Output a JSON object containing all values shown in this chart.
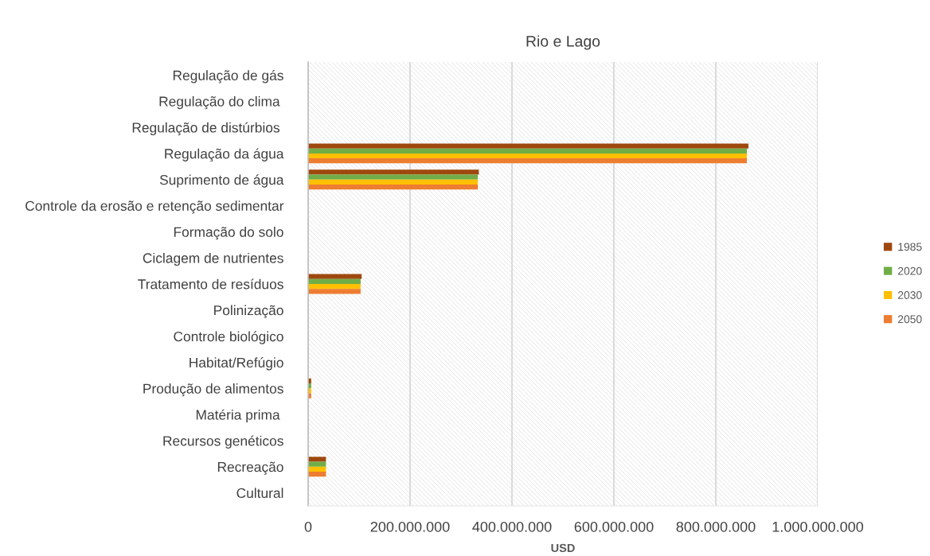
{
  "chart_data": {
    "type": "bar",
    "orientation": "horizontal",
    "title": "Rio e Lago",
    "xlabel": "USD",
    "categories": [
      "Regulação de gás",
      "Regulação do clima ",
      "Regulação de distúrbios ",
      "Regulação da água",
      "Suprimento de água",
      "Controle da erosão e retenção sedimentar",
      "Formação do solo",
      "Ciclagem de nutrientes",
      "Tratamento de resíduos",
      "Polinização",
      "Controle biológico",
      "Habitat/Refúgio",
      "Produção de alimentos",
      "Matéria prima ",
      "Recursos genéticos",
      "Recreação",
      "Cultural"
    ],
    "series": [
      {
        "name": "1985",
        "color": "#9e480e",
        "values": [
          null,
          null,
          null,
          864000000,
          335000000,
          null,
          null,
          null,
          105000000,
          null,
          null,
          null,
          6000000,
          null,
          null,
          35000000,
          null
        ]
      },
      {
        "name": "2020",
        "color": "#70ad47",
        "values": [
          null,
          null,
          null,
          861000000,
          333000000,
          null,
          null,
          null,
          103000000,
          null,
          null,
          null,
          6000000,
          null,
          null,
          35000000,
          null
        ]
      },
      {
        "name": "2030",
        "color": "#ffc000",
        "values": [
          null,
          null,
          null,
          861000000,
          333000000,
          null,
          null,
          null,
          103000000,
          null,
          null,
          null,
          6000000,
          null,
          null,
          35000000,
          null
        ]
      },
      {
        "name": "2050",
        "color": "#ed7d31",
        "values": [
          null,
          null,
          null,
          861000000,
          333000000,
          null,
          null,
          null,
          103000000,
          null,
          null,
          null,
          6000000,
          null,
          null,
          35000000,
          null
        ]
      }
    ],
    "xlim": [
      0,
      1000000000
    ],
    "xticks": [
      0,
      {
        "value": 200000000,
        "label": "200.000.000"
      },
      {
        "value": 400000000,
        "label": "400.000.000"
      },
      {
        "value": 600000000,
        "label": "600.000.000"
      },
      {
        "value": 800000000,
        "label": "800.000.000"
      },
      {
        "value": 1000000000,
        "label": "1.000.000.000"
      }
    ],
    "grid": "x",
    "legend": "right"
  }
}
